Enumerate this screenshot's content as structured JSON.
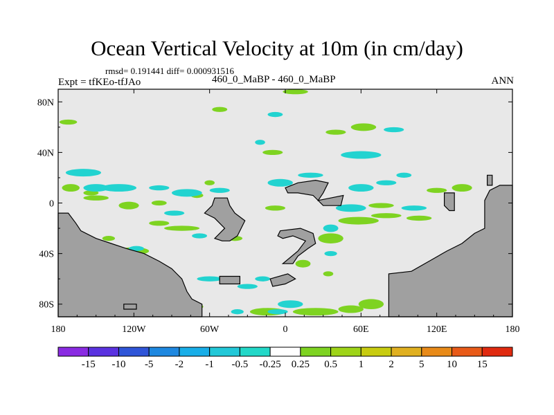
{
  "title": "Ocean Vertical Velocity at 10m (in cm/day)",
  "stats_text": "rmsd= 0.191441 diff= 0.000931516",
  "experiment_text": "Expt = tfKEo-tfJAo",
  "subtitle": "460_0_MaBP - 460_0_MaBP",
  "season": "ANN",
  "colors": {
    "background_field": "#e8e8e8",
    "land": "#a0a0a0",
    "coast": "#000000",
    "cyan": "#22d3d0",
    "green": "#7ed321",
    "yellowgreen": "#b8d41a"
  },
  "chart_data": {
    "type": "heatmap",
    "title": "Ocean Vertical Velocity at 10m (in cm/day)",
    "xlim": [
      -180,
      180
    ],
    "ylim": [
      -90,
      90
    ],
    "x_ticks": [
      {
        "value": -180,
        "label": "180"
      },
      {
        "value": -120,
        "label": "120W"
      },
      {
        "value": -60,
        "label": "60W"
      },
      {
        "value": 0,
        "label": "0"
      },
      {
        "value": 60,
        "label": "60E"
      },
      {
        "value": 120,
        "label": "120E"
      },
      {
        "value": 180,
        "label": "180"
      }
    ],
    "y_ticks": [
      {
        "value": 80,
        "label": "80N"
      },
      {
        "value": 40,
        "label": "40N"
      },
      {
        "value": 0,
        "label": "0"
      },
      {
        "value": -40,
        "label": "40S"
      },
      {
        "value": -80,
        "label": "80S"
      }
    ],
    "colorbar": {
      "labels": [
        "-15",
        "-10",
        "-5",
        "-2",
        "-1",
        "-0.5",
        "-0.25",
        "0.25",
        "0.5",
        "1",
        "2",
        "5",
        "10",
        "15"
      ],
      "colors": [
        "#8a2be2",
        "#5a32e0",
        "#2f55d8",
        "#1e88e0",
        "#18aee8",
        "#22c8d8",
        "#22d8c8",
        "#ffffff",
        "#7ed321",
        "#9ed418",
        "#c8cc10",
        "#e0b020",
        "#e88a18",
        "#e85a18",
        "#e02a10"
      ]
    },
    "land_polygons": [
      [
        [
          -180,
          -8
        ],
        [
          -172,
          -8
        ],
        [
          -166,
          -16
        ],
        [
          -162,
          -22
        ],
        [
          -150,
          -28
        ],
        [
          -138,
          -32
        ],
        [
          -126,
          -36
        ],
        [
          -112,
          -40
        ],
        [
          -100,
          -46
        ],
        [
          -90,
          -52
        ],
        [
          -82,
          -60
        ],
        [
          -78,
          -70
        ],
        [
          -74,
          -76
        ],
        [
          -66,
          -80
        ],
        [
          -66,
          -90
        ],
        [
          -180,
          -90
        ]
      ],
      [
        [
          82,
          -56
        ],
        [
          82,
          -90
        ],
        [
          180,
          -90
        ],
        [
          180,
          14
        ],
        [
          170,
          14
        ],
        [
          162,
          10
        ],
        [
          158,
          2
        ],
        [
          158,
          -20
        ],
        [
          150,
          -24
        ],
        [
          140,
          -32
        ],
        [
          128,
          -38
        ],
        [
          114,
          -46
        ],
        [
          100,
          -54
        ]
      ],
      [
        [
          -56,
          4
        ],
        [
          -46,
          4
        ],
        [
          -44,
          -2
        ],
        [
          -40,
          -8
        ],
        [
          -32,
          -14
        ],
        [
          -38,
          -26
        ],
        [
          -44,
          -30
        ],
        [
          -50,
          -30
        ],
        [
          -56,
          -28
        ],
        [
          -48,
          -20
        ],
        [
          -56,
          -12
        ],
        [
          -64,
          -8
        ],
        [
          -58,
          -2
        ]
      ],
      [
        [
          -4,
          -22
        ],
        [
          12,
          -20
        ],
        [
          22,
          -24
        ],
        [
          24,
          -32
        ],
        [
          18,
          -36
        ],
        [
          10,
          -42
        ],
        [
          6,
          -48
        ],
        [
          -2,
          -48
        ],
        [
          10,
          -38
        ],
        [
          16,
          -30
        ],
        [
          6,
          -26
        ],
        [
          -2,
          -28
        ],
        [
          -6,
          -26
        ]
      ],
      [
        [
          0,
          12
        ],
        [
          10,
          16
        ],
        [
          24,
          18
        ],
        [
          34,
          16
        ],
        [
          30,
          8
        ],
        [
          26,
          2
        ],
        [
          36,
          4
        ],
        [
          46,
          6
        ],
        [
          44,
          -2
        ],
        [
          30,
          -2
        ],
        [
          22,
          6
        ],
        [
          10,
          8
        ],
        [
          2,
          8
        ]
      ],
      [
        [
          126,
          8
        ],
        [
          134,
          8
        ],
        [
          134,
          -6
        ],
        [
          130,
          -6
        ],
        [
          126,
          -2
        ]
      ],
      [
        [
          160,
          22
        ],
        [
          164,
          22
        ],
        [
          164,
          14
        ],
        [
          160,
          14
        ]
      ],
      [
        [
          -52,
          -58
        ],
        [
          -36,
          -58
        ],
        [
          -36,
          -64
        ],
        [
          -52,
          -64
        ]
      ],
      [
        [
          -12,
          -60
        ],
        [
          2,
          -56
        ],
        [
          8,
          -60
        ],
        [
          0,
          -64
        ],
        [
          -10,
          -66
        ]
      ],
      [
        [
          -128,
          -80
        ],
        [
          -118,
          -80
        ],
        [
          -118,
          -84
        ],
        [
          -128,
          -84
        ]
      ]
    ],
    "positive_patches": [
      [
        -172,
        64,
        7,
        2
      ],
      [
        -170,
        12,
        7,
        3
      ],
      [
        -154,
        8,
        6,
        2
      ],
      [
        -140,
        -28,
        5,
        2
      ],
      [
        -120,
        -38,
        12,
        3
      ],
      [
        -112,
        -50,
        10,
        3
      ],
      [
        -96,
        -72,
        8,
        5
      ],
      [
        -70,
        -82,
        5,
        2
      ],
      [
        -48,
        -60,
        6,
        2
      ],
      [
        -14,
        -86,
        14,
        3
      ],
      [
        24,
        -86,
        18,
        3
      ],
      [
        52,
        -84,
        10,
        3
      ],
      [
        68,
        -80,
        10,
        4
      ],
      [
        34,
        -56,
        4,
        2
      ],
      [
        14,
        -48,
        6,
        3
      ],
      [
        36,
        -28,
        10,
        4
      ],
      [
        58,
        -14,
        16,
        3
      ],
      [
        80,
        -10,
        12,
        2
      ],
      [
        76,
        -2,
        10,
        2
      ],
      [
        106,
        -12,
        10,
        2
      ],
      [
        120,
        10,
        8,
        2
      ],
      [
        140,
        12,
        8,
        3
      ],
      [
        -40,
        -28,
        6,
        2
      ],
      [
        -82,
        -20,
        14,
        2
      ],
      [
        -100,
        -16,
        8,
        2
      ],
      [
        -124,
        -2,
        8,
        3
      ],
      [
        -150,
        4,
        10,
        2
      ],
      [
        -60,
        16,
        4,
        2
      ],
      [
        -70,
        6,
        5,
        2
      ],
      [
        -100,
        0,
        6,
        2
      ],
      [
        -10,
        40,
        8,
        2
      ],
      [
        40,
        56,
        8,
        2
      ],
      [
        62,
        60,
        10,
        3
      ],
      [
        -52,
        74,
        6,
        2
      ],
      [
        8,
        88,
        10,
        2
      ],
      [
        -8,
        -4,
        8,
        2
      ]
    ],
    "negative_patches": [
      [
        -160,
        24,
        14,
        3
      ],
      [
        -150,
        12,
        10,
        3
      ],
      [
        -132,
        12,
        14,
        3
      ],
      [
        -100,
        12,
        8,
        2
      ],
      [
        -78,
        8,
        12,
        3
      ],
      [
        -68,
        -26,
        6,
        2
      ],
      [
        -88,
        -8,
        8,
        2
      ],
      [
        -60,
        -60,
        10,
        2
      ],
      [
        -30,
        -66,
        8,
        2
      ],
      [
        -18,
        -60,
        6,
        2
      ],
      [
        -6,
        -86,
        8,
        2
      ],
      [
        -38,
        -86,
        5,
        2
      ],
      [
        -80,
        -86,
        10,
        2
      ],
      [
        4,
        -80,
        10,
        3
      ],
      [
        36,
        -20,
        6,
        3
      ],
      [
        52,
        -4,
        12,
        3
      ],
      [
        60,
        12,
        10,
        3
      ],
      [
        80,
        16,
        8,
        2
      ],
      [
        60,
        38,
        16,
        3
      ],
      [
        86,
        58,
        8,
        2
      ],
      [
        20,
        22,
        10,
        2
      ],
      [
        94,
        22,
        6,
        2
      ],
      [
        -8,
        70,
        6,
        2
      ],
      [
        -20,
        48,
        4,
        2
      ],
      [
        -118,
        -36,
        6,
        2
      ],
      [
        -4,
        16,
        10,
        3
      ],
      [
        -52,
        10,
        8,
        2
      ],
      [
        102,
        -4,
        10,
        2
      ],
      [
        36,
        -40,
        5,
        2
      ]
    ]
  }
}
